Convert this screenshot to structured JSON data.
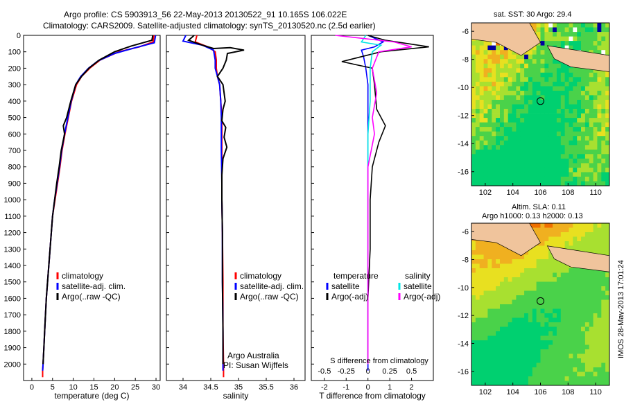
{
  "header": {
    "line1": "Argo profile: CS 5903913_56 22-May-2013 20130522_91 10.165S 106.022E",
    "line2": "Climatology: CARS2009. Satellite-adjusted climatology: synTS_20130520.nc (2.5d earlier)"
  },
  "colors": {
    "climatology": "#ff0000",
    "satellite": "#0000ff",
    "argo": "#000000",
    "sal_sat": "#00e5e5",
    "sal_argo": "#ff00ff"
  },
  "chart_data": [
    {
      "id": "temperature",
      "type": "line",
      "xlabel": "temperature (deg C)",
      "ylabel": "",
      "xlim": [
        -2,
        31
      ],
      "ylim": [
        2100,
        0
      ],
      "x_ticks": [
        0,
        5,
        10,
        15,
        20,
        25,
        30
      ],
      "y_ticks": [
        0,
        100,
        200,
        300,
        400,
        500,
        600,
        700,
        800,
        900,
        1000,
        1100,
        1200,
        1300,
        1400,
        1500,
        1600,
        1700,
        1800,
        1900,
        2000
      ],
      "legend": [
        "climatology",
        "satellite-adj. clim.",
        "Argo(..raw -QC)"
      ],
      "legend_position": "lower-center",
      "series": [
        {
          "name": "climatology",
          "color": "#ff0000",
          "points": [
            [
              29.5,
              0
            ],
            [
              29.3,
              40
            ],
            [
              26,
              70
            ],
            [
              21,
              100
            ],
            [
              16.5,
              150
            ],
            [
              14,
              200
            ],
            [
              12,
              250
            ],
            [
              10.8,
              300
            ],
            [
              9.6,
              400
            ],
            [
              8.8,
              500
            ],
            [
              8,
              600
            ],
            [
              7.3,
              700
            ],
            [
              6.8,
              800
            ],
            [
              6.2,
              900
            ],
            [
              5.6,
              1000
            ],
            [
              5,
              1100
            ],
            [
              4.7,
              1200
            ],
            [
              4.4,
              1300
            ],
            [
              4.1,
              1400
            ],
            [
              3.8,
              1500
            ],
            [
              3.5,
              1600
            ],
            [
              3.3,
              1700
            ],
            [
              3.1,
              1800
            ],
            [
              2.9,
              1900
            ],
            [
              2.7,
              2000
            ],
            [
              2.6,
              2040
            ],
            [
              2.6,
              2080
            ]
          ]
        },
        {
          "name": "satellite-adj. clim.",
          "color": "#0000ff",
          "points": [
            [
              29.9,
              0
            ],
            [
              29.6,
              45
            ],
            [
              25,
              75
            ],
            [
              20,
              110
            ],
            [
              16,
              155
            ],
            [
              13.7,
              200
            ],
            [
              11.8,
              250
            ],
            [
              10.6,
              300
            ],
            [
              9.5,
              400
            ],
            [
              8.7,
              500
            ],
            [
              7.9,
              600
            ],
            [
              7.2,
              700
            ],
            [
              6.7,
              800
            ],
            [
              6.1,
              900
            ],
            [
              5.5,
              1000
            ],
            [
              5,
              1100
            ],
            [
              4.7,
              1200
            ],
            [
              4.4,
              1300
            ],
            [
              4.1,
              1400
            ],
            [
              3.8,
              1500
            ],
            [
              3.5,
              1600
            ],
            [
              3.3,
              1700
            ],
            [
              3.1,
              1800
            ],
            [
              2.9,
              1900
            ],
            [
              2.7,
              2000
            ],
            [
              2.6,
              2040
            ]
          ]
        },
        {
          "name": "Argo(..raw -QC)",
          "color": "#000000",
          "points": [
            [
              29.2,
              0
            ],
            [
              29,
              30
            ],
            [
              24,
              65
            ],
            [
              20,
              100
            ],
            [
              16.3,
              150
            ],
            [
              13.8,
              200
            ],
            [
              12,
              250
            ],
            [
              10.6,
              300
            ],
            [
              9.4,
              400
            ],
            [
              8.4,
              500
            ],
            [
              7.6,
              550
            ],
            [
              7.9,
              600
            ],
            [
              7.1,
              700
            ],
            [
              6.6,
              800
            ],
            [
              6,
              900
            ],
            [
              5.5,
              1000
            ],
            [
              5,
              1100
            ],
            [
              4.7,
              1200
            ],
            [
              4.4,
              1300
            ],
            [
              4.1,
              1400
            ],
            [
              3.8,
              1500
            ],
            [
              3.5,
              1600
            ],
            [
              3.3,
              1700
            ],
            [
              3.1,
              1800
            ],
            [
              2.9,
              1900
            ],
            [
              2.7,
              2000
            ]
          ]
        }
      ]
    },
    {
      "id": "salinity",
      "type": "line",
      "xlabel": "salinity",
      "xlim": [
        33.7,
        36.2
      ],
      "ylim": [
        2100,
        0
      ],
      "x_ticks": [
        34,
        34.5,
        35,
        35.5,
        36
      ],
      "legend": [
        "climatology",
        "satellite-adj. clim.",
        "Argo(..raw -QC)"
      ],
      "legend_position": "lower-right",
      "annotation": [
        "Argo Australia",
        "PI: Susan Wijffels"
      ],
      "series": [
        {
          "name": "climatology",
          "color": "#ff0000",
          "points": [
            [
              34.25,
              0
            ],
            [
              34.22,
              40
            ],
            [
              34.45,
              70
            ],
            [
              34.58,
              100
            ],
            [
              34.6,
              150
            ],
            [
              34.6,
              200
            ],
            [
              34.62,
              250
            ],
            [
              34.66,
              300
            ],
            [
              34.68,
              400
            ],
            [
              34.7,
              500
            ],
            [
              34.7,
              600
            ],
            [
              34.7,
              700
            ],
            [
              34.7,
              800
            ],
            [
              34.7,
              900
            ],
            [
              34.7,
              1000
            ],
            [
              34.71,
              1200
            ],
            [
              34.72,
              1500
            ],
            [
              34.72,
              1800
            ],
            [
              34.73,
              2000
            ],
            [
              34.73,
              2080
            ]
          ]
        },
        {
          "name": "satellite-adj. clim.",
          "color": "#0000ff",
          "points": [
            [
              34.05,
              0
            ],
            [
              34.0,
              35
            ],
            [
              34.35,
              60
            ],
            [
              34.55,
              90
            ],
            [
              34.58,
              150
            ],
            [
              34.58,
              200
            ],
            [
              34.62,
              250
            ],
            [
              34.66,
              300
            ],
            [
              34.68,
              400
            ],
            [
              34.69,
              500
            ],
            [
              34.69,
              700
            ],
            [
              34.7,
              900
            ],
            [
              34.7,
              1000
            ],
            [
              34.71,
              1200
            ],
            [
              34.71,
              1500
            ],
            [
              34.72,
              1800
            ],
            [
              34.72,
              2000
            ],
            [
              34.72,
              2040
            ]
          ]
        },
        {
          "name": "Argo(..raw -QC)",
          "color": "#000000",
          "points": [
            [
              34.2,
              0
            ],
            [
              34.1,
              30
            ],
            [
              34.35,
              60
            ],
            [
              34.55,
              80
            ],
            [
              34.85,
              75
            ],
            [
              35.1,
              90
            ],
            [
              34.8,
              110
            ],
            [
              34.78,
              150
            ],
            [
              34.72,
              200
            ],
            [
              34.62,
              250
            ],
            [
              34.72,
              300
            ],
            [
              34.76,
              400
            ],
            [
              34.72,
              450
            ],
            [
              34.7,
              520
            ],
            [
              34.77,
              560
            ],
            [
              34.74,
              620
            ],
            [
              34.79,
              680
            ],
            [
              34.72,
              750
            ],
            [
              34.7,
              850
            ],
            [
              34.7,
              1000
            ],
            [
              34.71,
              1200
            ],
            [
              34.71,
              1500
            ],
            [
              34.72,
              1800
            ],
            [
              34.72,
              2000
            ]
          ]
        }
      ]
    },
    {
      "id": "difference",
      "type": "line",
      "xlabel": "T difference from climatology",
      "x2label": "S difference from climatology",
      "xlim": [
        -2.6,
        3
      ],
      "ylim": [
        2100,
        0
      ],
      "x_ticks": [
        -2,
        -1,
        0,
        1,
        2
      ],
      "x2_ticks": [
        "-0.5",
        "-0.25",
        "0",
        "0.25",
        "0.5"
      ],
      "x2_positions": [
        -2,
        -1,
        0,
        1,
        2
      ],
      "legend_temperature": {
        "title": "temperature",
        "items": [
          "satellite",
          "Argo(-adj)"
        ]
      },
      "legend_salinity": {
        "title": "salinity",
        "items": [
          "satellite",
          "Argo(-adj)"
        ]
      },
      "series": [
        {
          "name": "T satellite",
          "color": "#0000ff",
          "points": [
            [
              0,
              0
            ],
            [
              0.7,
              40
            ],
            [
              0.3,
              70
            ],
            [
              -0.3,
              90
            ],
            [
              -0.2,
              130
            ],
            [
              -0.1,
              200
            ],
            [
              0,
              300
            ],
            [
              0,
              500
            ],
            [
              0,
              1000
            ],
            [
              0,
              1500
            ],
            [
              0,
              2000
            ],
            [
              0,
              2040
            ]
          ]
        },
        {
          "name": "T Argo(-adj)",
          "color": "#000000",
          "points": [
            [
              0,
              0
            ],
            [
              0.8,
              30
            ],
            [
              2.8,
              70
            ],
            [
              0.6,
              100
            ],
            [
              -1.2,
              160
            ],
            [
              0.2,
              200
            ],
            [
              0.3,
              300
            ],
            [
              0.4,
              450
            ],
            [
              0.8,
              550
            ],
            [
              0.5,
              650
            ],
            [
              0.2,
              800
            ],
            [
              0.1,
              1000
            ],
            [
              0.1,
              1300
            ],
            [
              0,
              1600
            ],
            [
              0,
              2000
            ]
          ]
        },
        {
          "name": "S satellite",
          "color": "#00e5e5",
          "points": [
            [
              -0.1,
              0
            ],
            [
              -0.3,
              40
            ],
            [
              0.6,
              60
            ],
            [
              0.2,
              100
            ],
            [
              0.1,
              200
            ],
            [
              0.1,
              400
            ],
            [
              0,
              600
            ],
            [
              0,
              1000
            ],
            [
              0,
              1500
            ],
            [
              0,
              2000
            ]
          ]
        },
        {
          "name": "S Argo(-adj)",
          "color": "#ff00ff",
          "points": [
            [
              -1.5,
              0
            ],
            [
              1.2,
              40
            ],
            [
              2,
              70
            ],
            [
              0.5,
              100
            ],
            [
              0.2,
              200
            ],
            [
              0.4,
              350
            ],
            [
              0.2,
              500
            ],
            [
              0.3,
              600
            ],
            [
              0,
              800
            ],
            [
              0,
              1000
            ],
            [
              0,
              1500
            ],
            [
              0,
              2000
            ]
          ]
        }
      ]
    }
  ],
  "maps": [
    {
      "id": "sst",
      "title": "sat. SST: 30 Argo: 29.4",
      "x_ticks": [
        102,
        104,
        106,
        108,
        110
      ],
      "y_ticks": [
        -6,
        -8,
        -10,
        -12,
        -14,
        -16
      ]
    },
    {
      "id": "sla",
      "title_line1": "Altim. SLA: 0.11",
      "title_line2": "Argo h1000: 0.13 h2000: 0.13",
      "x_ticks": [
        102,
        104,
        106,
        108,
        110
      ],
      "y_ticks": [
        -6,
        -8,
        -10,
        -12,
        -14,
        -16
      ]
    }
  ],
  "credit": "IMOS 28-May-2013 17:01:24"
}
